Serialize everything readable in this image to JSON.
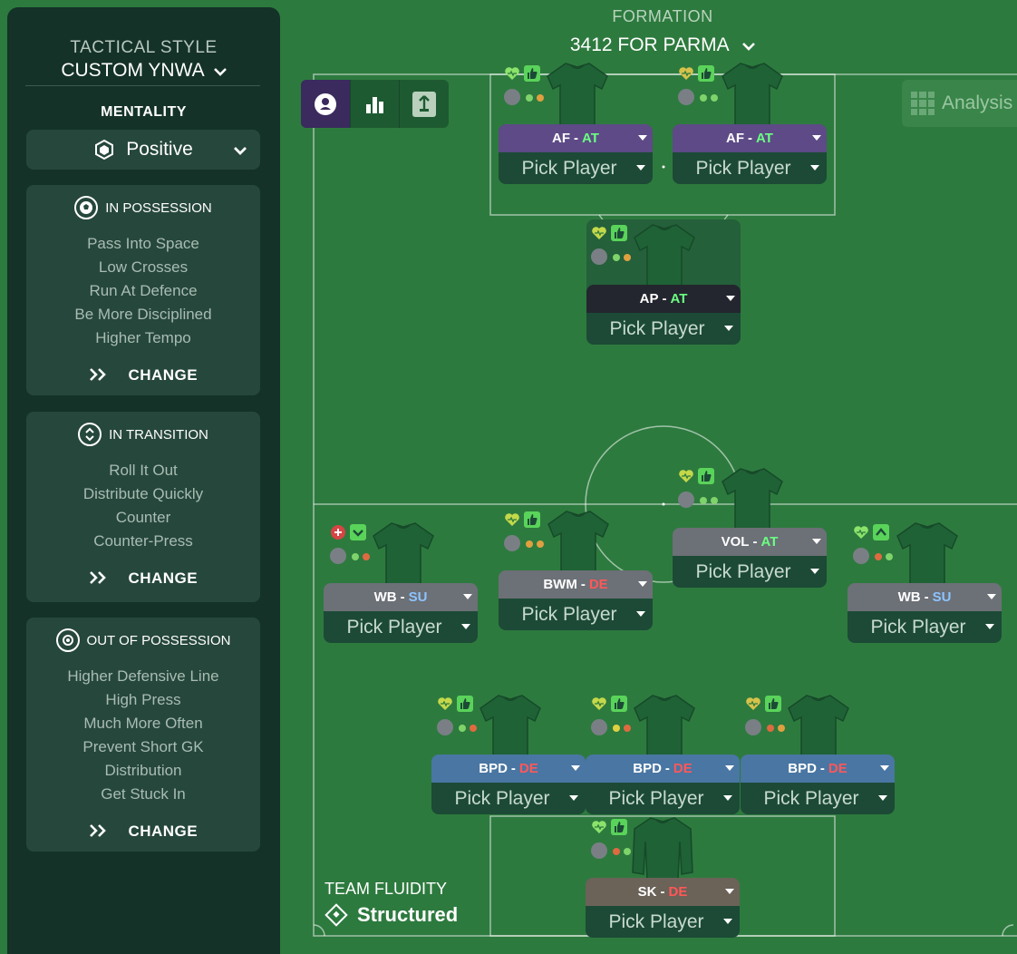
{
  "sidebar": {
    "tactical_style_label": "TACTICAL STYLE",
    "tactical_style_value": "CUSTOM YNWA",
    "mentality_label": "MENTALITY",
    "mentality_value": "Positive",
    "in_possession": {
      "title": "IN POSSESSION",
      "items": [
        "Pass Into Space",
        "Low Crosses",
        "Run At Defence",
        "Be More Disciplined",
        "Higher Tempo"
      ],
      "change": "CHANGE"
    },
    "in_transition": {
      "title": "IN TRANSITION",
      "items": [
        "Roll It Out",
        "Distribute Quickly",
        "Counter",
        "Counter-Press"
      ],
      "change": "CHANGE"
    },
    "out_of_possession": {
      "title": "OUT OF POSSESSION",
      "items": [
        "Higher Defensive Line",
        "High Press",
        "Much More Often",
        "Prevent Short GK",
        "Distribution",
        "Get Stuck In"
      ],
      "change": "CHANGE"
    }
  },
  "formation": {
    "label": "FORMATION",
    "value": "3412 FOR PARMA"
  },
  "analysis_label": "Analysis",
  "team_fluidity": {
    "label": "TEAM FLUIDITY",
    "value": "Structured"
  },
  "pick_label": "Pick Player",
  "dash": "-",
  "slots": {
    "af_left": {
      "role": "AF",
      "duty": "AT"
    },
    "af_right": {
      "role": "AF",
      "duty": "AT"
    },
    "ap": {
      "role": "AP",
      "duty": "AT"
    },
    "vol": {
      "role": "VOL",
      "duty": "AT"
    },
    "bwm": {
      "role": "BWM",
      "duty": "DE"
    },
    "wb_left": {
      "role": "WB",
      "duty": "SU"
    },
    "wb_right": {
      "role": "WB",
      "duty": "SU"
    },
    "bpd_left": {
      "role": "BPD",
      "duty": "DE"
    },
    "bpd_center": {
      "role": "BPD",
      "duty": "DE"
    },
    "bpd_right": {
      "role": "BPD",
      "duty": "DE"
    },
    "sk": {
      "role": "SK",
      "duty": "DE"
    }
  },
  "colors": {
    "pitch": "#2d7a3e",
    "sidebar": "#143228",
    "attack_duty": "#6bff82",
    "defend_duty": "#ff5858",
    "support_duty": "#8cc4ff"
  }
}
